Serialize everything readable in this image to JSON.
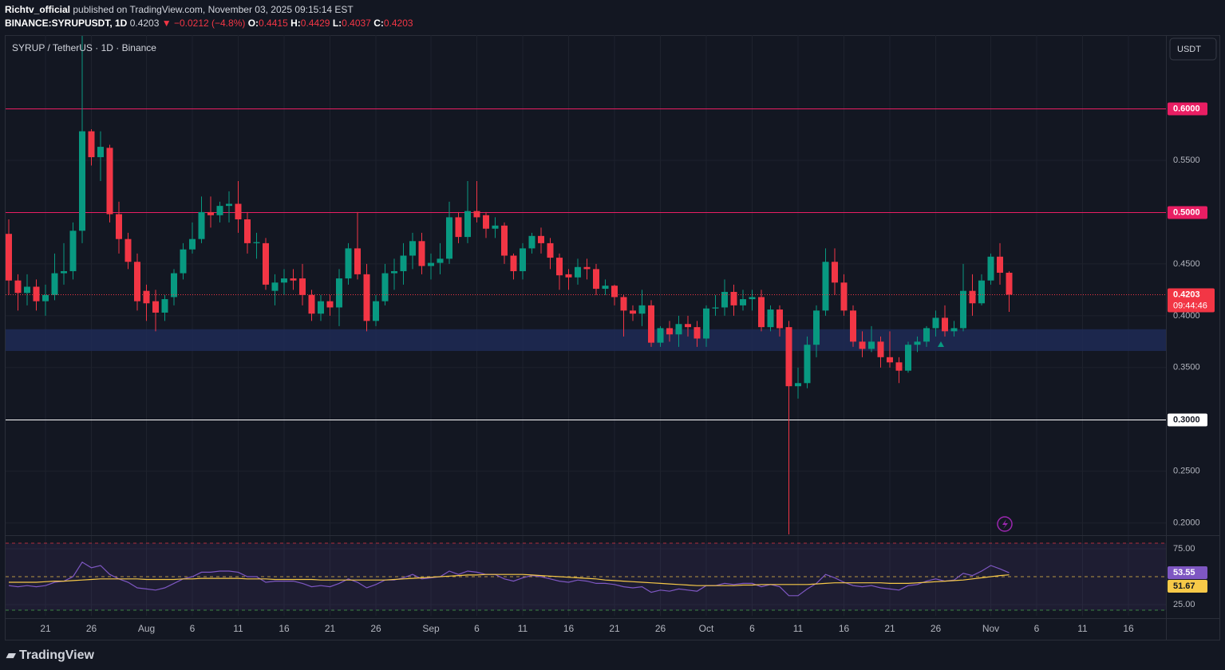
{
  "header": {
    "author": "Richtv_official",
    "published": "published on TradingView.com, November 03, 2025 09:15:14 EST",
    "symbol": "BINANCE:SYRUPUSDT, 1D",
    "last": "0.4203",
    "change": "▼ −0.0212 (−4.8%)",
    "ohlc": [
      {
        "key": "O:",
        "value": "0.4415"
      },
      {
        "key": "H:",
        "value": "0.4429"
      },
      {
        "key": "L:",
        "value": "0.4037"
      },
      {
        "key": "C:",
        "value": "0.4203"
      }
    ]
  },
  "footer": "TradingView",
  "chart_data": [
    {
      "type": "candlestick",
      "title": "SYRUP / TetherUS · 1D · Binance",
      "currency_button": "USDT",
      "countdown": "09:44:46",
      "up_color": "#089981",
      "down_color": "#f23645",
      "x": [
        "2025-07-17",
        "2025-07-18",
        "2025-07-19",
        "2025-07-20",
        "2025-07-21",
        "2025-07-22",
        "2025-07-23",
        "2025-07-24",
        "2025-07-25",
        "2025-07-26",
        "2025-07-27",
        "2025-07-28",
        "2025-07-29",
        "2025-07-30",
        "2025-07-31",
        "2025-08-01",
        "2025-08-02",
        "2025-08-03",
        "2025-08-04",
        "2025-08-05",
        "2025-08-06",
        "2025-08-07",
        "2025-08-08",
        "2025-08-09",
        "2025-08-10",
        "2025-08-11",
        "2025-08-12",
        "2025-08-13",
        "2025-08-14",
        "2025-08-15",
        "2025-08-16",
        "2025-08-17",
        "2025-08-18",
        "2025-08-19",
        "2025-08-20",
        "2025-08-21",
        "2025-08-22",
        "2025-08-23",
        "2025-08-24",
        "2025-08-25",
        "2025-08-26",
        "2025-08-27",
        "2025-08-28",
        "2025-08-29",
        "2025-08-30",
        "2025-08-31",
        "2025-09-01",
        "2025-09-02",
        "2025-09-03",
        "2025-09-04",
        "2025-09-05",
        "2025-09-06",
        "2025-09-07",
        "2025-09-08",
        "2025-09-09",
        "2025-09-10",
        "2025-09-11",
        "2025-09-12",
        "2025-09-13",
        "2025-09-14",
        "2025-09-15",
        "2025-09-16",
        "2025-09-17",
        "2025-09-18",
        "2025-09-19",
        "2025-09-20",
        "2025-09-21",
        "2025-09-22",
        "2025-09-23",
        "2025-09-24",
        "2025-09-25",
        "2025-09-26",
        "2025-09-27",
        "2025-09-28",
        "2025-09-29",
        "2025-09-30",
        "2025-10-01",
        "2025-10-02",
        "2025-10-03",
        "2025-10-04",
        "2025-10-05",
        "2025-10-06",
        "2025-10-07",
        "2025-10-08",
        "2025-10-09",
        "2025-10-10",
        "2025-10-11",
        "2025-10-12",
        "2025-10-13",
        "2025-10-14",
        "2025-10-15",
        "2025-10-16",
        "2025-10-17",
        "2025-10-18",
        "2025-10-19",
        "2025-10-20",
        "2025-10-21",
        "2025-10-22",
        "2025-10-23",
        "2025-10-24",
        "2025-10-25",
        "2025-10-26",
        "2025-10-27",
        "2025-10-28",
        "2025-10-29",
        "2025-10-30",
        "2025-10-31",
        "2025-11-01",
        "2025-11-02",
        "2025-11-03"
      ],
      "open": [
        0.479,
        0.434,
        0.422,
        0.428,
        0.414,
        0.42,
        0.441,
        0.443,
        0.482,
        0.578,
        0.553,
        0.562,
        0.498,
        0.474,
        0.452,
        0.424,
        0.414,
        0.403,
        0.418,
        0.441,
        0.464,
        0.474,
        0.5,
        0.497,
        0.506,
        0.508,
        0.493,
        0.47,
        0.47,
        0.424,
        0.432,
        0.436,
        0.436,
        0.42,
        0.402,
        0.414,
        0.408,
        0.436,
        0.465,
        0.44,
        0.395,
        0.414,
        0.441,
        0.443,
        0.458,
        0.472,
        0.448,
        0.451,
        0.455,
        0.495,
        0.476,
        0.501,
        0.497,
        0.484,
        0.487,
        0.458,
        0.443,
        0.465,
        0.477,
        0.47,
        0.456,
        0.44,
        0.437,
        0.447,
        0.445,
        0.426,
        0.429,
        0.418,
        0.405,
        0.402,
        0.41,
        0.374,
        0.388,
        0.382,
        0.392,
        0.389,
        0.378,
        0.407,
        0.408,
        0.423,
        0.41,
        0.416,
        0.418,
        0.389,
        0.406,
        0.389,
        0.332,
        0.335,
        0.372,
        0.405,
        0.452,
        0.432,
        0.405,
        0.375,
        0.368,
        0.375,
        0.36,
        0.355,
        0.347,
        0.372,
        0.375,
        0.388,
        0.398,
        0.385,
        0.388,
        0.424,
        0.412,
        0.434,
        0.457,
        0.4415
      ],
      "high": [
        0.493,
        0.44,
        0.44,
        0.435,
        0.43,
        0.46,
        0.47,
        0.49,
        0.67,
        0.58,
        0.578,
        0.565,
        0.51,
        0.48,
        0.46,
        0.43,
        0.425,
        0.42,
        0.445,
        0.47,
        0.49,
        0.515,
        0.515,
        0.51,
        0.52,
        0.53,
        0.5,
        0.48,
        0.475,
        0.44,
        0.445,
        0.445,
        0.45,
        0.425,
        0.42,
        0.42,
        0.445,
        0.47,
        0.5,
        0.45,
        0.42,
        0.45,
        0.455,
        0.47,
        0.48,
        0.48,
        0.46,
        0.47,
        0.51,
        0.5,
        0.53,
        0.53,
        0.5,
        0.495,
        0.49,
        0.46,
        0.47,
        0.48,
        0.485,
        0.475,
        0.46,
        0.445,
        0.455,
        0.455,
        0.45,
        0.435,
        0.43,
        0.42,
        0.41,
        0.425,
        0.415,
        0.39,
        0.395,
        0.4,
        0.4,
        0.395,
        0.41,
        0.42,
        0.435,
        0.43,
        0.425,
        0.425,
        0.425,
        0.41,
        0.41,
        0.395,
        0.35,
        0.38,
        0.41,
        0.465,
        0.465,
        0.44,
        0.41,
        0.385,
        0.39,
        0.38,
        0.385,
        0.36,
        0.375,
        0.38,
        0.39,
        0.405,
        0.41,
        0.395,
        0.45,
        0.44,
        0.44,
        0.46,
        0.47,
        0.4429
      ],
      "low": [
        0.42,
        0.405,
        0.41,
        0.405,
        0.4,
        0.415,
        0.43,
        0.435,
        0.47,
        0.545,
        0.53,
        0.49,
        0.46,
        0.445,
        0.405,
        0.395,
        0.385,
        0.395,
        0.41,
        0.435,
        0.46,
        0.47,
        0.485,
        0.49,
        0.49,
        0.48,
        0.46,
        0.455,
        0.425,
        0.41,
        0.42,
        0.425,
        0.41,
        0.395,
        0.395,
        0.4,
        0.39,
        0.43,
        0.435,
        0.385,
        0.39,
        0.41,
        0.425,
        0.43,
        0.445,
        0.44,
        0.435,
        0.44,
        0.45,
        0.47,
        0.47,
        0.49,
        0.475,
        0.475,
        0.45,
        0.435,
        0.435,
        0.46,
        0.46,
        0.445,
        0.425,
        0.425,
        0.43,
        0.435,
        0.42,
        0.42,
        0.41,
        0.38,
        0.395,
        0.39,
        0.37,
        0.37,
        0.375,
        0.37,
        0.38,
        0.37,
        0.37,
        0.4,
        0.4,
        0.4,
        0.405,
        0.405,
        0.385,
        0.385,
        0.38,
        0.189,
        0.32,
        0.33,
        0.36,
        0.4,
        0.42,
        0.4,
        0.37,
        0.36,
        0.365,
        0.35,
        0.35,
        0.335,
        0.345,
        0.365,
        0.37,
        0.38,
        0.38,
        0.38,
        0.385,
        0.4,
        0.41,
        0.43,
        0.43,
        0.4037
      ],
      "close": [
        0.434,
        0.422,
        0.428,
        0.414,
        0.42,
        0.441,
        0.443,
        0.482,
        0.578,
        0.553,
        0.563,
        0.498,
        0.474,
        0.452,
        0.414,
        0.412,
        0.403,
        0.416,
        0.441,
        0.464,
        0.474,
        0.5,
        0.497,
        0.506,
        0.508,
        0.493,
        0.47,
        0.471,
        0.43,
        0.432,
        0.436,
        0.434,
        0.42,
        0.402,
        0.414,
        0.408,
        0.436,
        0.465,
        0.44,
        0.395,
        0.414,
        0.441,
        0.443,
        0.458,
        0.472,
        0.448,
        0.451,
        0.455,
        0.495,
        0.476,
        0.501,
        0.495,
        0.484,
        0.487,
        0.458,
        0.443,
        0.465,
        0.477,
        0.47,
        0.456,
        0.439,
        0.437,
        0.447,
        0.445,
        0.426,
        0.429,
        0.418,
        0.405,
        0.402,
        0.41,
        0.374,
        0.388,
        0.382,
        0.392,
        0.389,
        0.378,
        0.407,
        0.408,
        0.423,
        0.41,
        0.416,
        0.418,
        0.389,
        0.406,
        0.388,
        0.332,
        0.335,
        0.372,
        0.405,
        0.452,
        0.432,
        0.405,
        0.375,
        0.368,
        0.375,
        0.36,
        0.355,
        0.347,
        0.372,
        0.375,
        0.388,
        0.398,
        0.385,
        0.388,
        0.424,
        0.412,
        0.434,
        0.457,
        0.4415,
        0.4203
      ],
      "xlim": [
        "2025-07-17",
        "2025-11-20"
      ],
      "ylim": [
        0.189,
        0.6708
      ],
      "yticks": [
        {
          "value": 0.55,
          "label": "0.5500"
        },
        {
          "value": 0.45,
          "label": "0.4500"
        },
        {
          "value": 0.4,
          "label": "0.4000"
        },
        {
          "value": 0.35,
          "label": "0.3500"
        },
        {
          "value": 0.25,
          "label": "0.2500"
        },
        {
          "value": 0.2,
          "label": "0.2000"
        }
      ],
      "xticks": [
        {
          "value": "2025-07-21",
          "label": "21"
        },
        {
          "value": "2025-07-26",
          "label": "26"
        },
        {
          "value": "2025-08-01",
          "label": "Aug"
        },
        {
          "value": "2025-08-06",
          "label": "6"
        },
        {
          "value": "2025-08-11",
          "label": "11"
        },
        {
          "value": "2025-08-16",
          "label": "16"
        },
        {
          "value": "2025-08-21",
          "label": "21"
        },
        {
          "value": "2025-08-26",
          "label": "26"
        },
        {
          "value": "2025-09-01",
          "label": "Sep"
        },
        {
          "value": "2025-09-06",
          "label": "6"
        },
        {
          "value": "2025-09-11",
          "label": "11"
        },
        {
          "value": "2025-09-16",
          "label": "16"
        },
        {
          "value": "2025-09-21",
          "label": "21"
        },
        {
          "value": "2025-09-26",
          "label": "26"
        },
        {
          "value": "2025-10-01",
          "label": "Oct"
        },
        {
          "value": "2025-10-06",
          "label": "6"
        },
        {
          "value": "2025-10-11",
          "label": "11"
        },
        {
          "value": "2025-10-16",
          "label": "16"
        },
        {
          "value": "2025-10-21",
          "label": "21"
        },
        {
          "value": "2025-10-26",
          "label": "26"
        },
        {
          "value": "2025-11-01",
          "label": "Nov"
        },
        {
          "value": "2025-11-06",
          "label": "6"
        },
        {
          "value": "2025-11-11",
          "label": "11"
        },
        {
          "value": "2025-11-16",
          "label": "16"
        }
      ],
      "levels": [
        {
          "value": 0.6,
          "label": "0.6000",
          "color": "#e91e63",
          "text_color": "#ffffff"
        },
        {
          "value": 0.5,
          "label": "0.5000",
          "color": "#e91e63",
          "text_color": "#ffffff"
        },
        {
          "value": 0.3,
          "label": "0.3000",
          "color": "#ffffff",
          "text_color": "#131722"
        }
      ],
      "zone": [
        0.366,
        0.387
      ],
      "zone_color": "#1e2a55"
    },
    {
      "type": "line",
      "ylim": [
        15,
        83.57
      ],
      "yticks": [
        {
          "value": 75,
          "label": "75.00"
        },
        {
          "value": 25,
          "label": "25.00"
        }
      ],
      "bands": [
        80,
        20
      ],
      "band_color": "#7e57c2",
      "midline": 50,
      "series": [
        {
          "color": "#7e57c2",
          "values": [
            42,
            41,
            42,
            41,
            42,
            45,
            46,
            50,
            63,
            58,
            60,
            52,
            48,
            45,
            40,
            39,
            38,
            40,
            44,
            48,
            50,
            54,
            54,
            55,
            55,
            54,
            50,
            50,
            45,
            46,
            46,
            46,
            44,
            41,
            42,
            41,
            44,
            48,
            45,
            40,
            43,
            47,
            47,
            49,
            52,
            48,
            49,
            50,
            55,
            52,
            55,
            54,
            52,
            52,
            48,
            46,
            49,
            51,
            50,
            48,
            46,
            45,
            47,
            46,
            44,
            44,
            43,
            41,
            40,
            41,
            36,
            38,
            37,
            39,
            38,
            37,
            42,
            42,
            44,
            43,
            44,
            44,
            41,
            43,
            41,
            33,
            33,
            39,
            44,
            52,
            49,
            45,
            42,
            41,
            42,
            40,
            39,
            38,
            42,
            43,
            46,
            48,
            46,
            47,
            53,
            51,
            55,
            60,
            57,
            53.55
          ]
        },
        {
          "color": "#f7c948",
          "values": [
            45,
            45,
            45,
            45,
            45.5,
            46,
            46,
            46.5,
            47,
            47.5,
            48,
            48,
            48,
            48,
            48,
            47.5,
            47.5,
            47.5,
            47.5,
            48,
            48,
            48.5,
            48.5,
            48.5,
            48.5,
            48.5,
            48,
            48,
            48,
            47.5,
            47.5,
            47.5,
            47.5,
            47.5,
            47,
            47,
            47,
            47,
            47,
            47,
            47,
            47,
            47.5,
            48,
            48.5,
            49,
            49.5,
            50,
            50.5,
            51,
            51.5,
            51.5,
            52,
            52,
            52,
            52,
            52,
            51.5,
            51,
            50.5,
            50,
            49.5,
            49,
            48.5,
            48,
            47,
            46.5,
            46,
            45.5,
            45,
            44.5,
            44,
            43.5,
            43,
            42.5,
            42,
            42,
            42,
            42,
            42,
            42.5,
            42.5,
            43,
            43,
            43,
            43,
            43,
            43,
            43.5,
            44,
            44.5,
            44.5,
            44.5,
            44.5,
            44.5,
            44.5,
            44,
            44,
            44,
            44.5,
            45,
            45.5,
            46,
            46.5,
            47,
            48,
            49,
            50,
            51,
            51.67
          ]
        }
      ]
    }
  ]
}
